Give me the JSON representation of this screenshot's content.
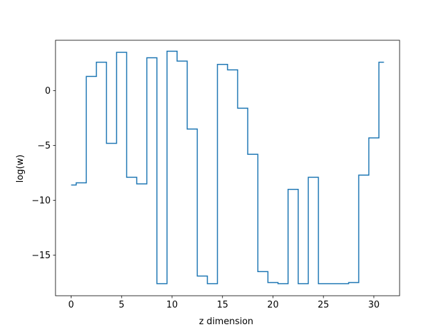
{
  "chart_data": {
    "type": "line",
    "drawstyle": "steps-mid",
    "xlabel": "z dimension",
    "ylabel": "log(w)",
    "xlim": [
      -1.55,
      32.55
    ],
    "ylim": [
      -18.7,
      4.6
    ],
    "x_ticks": [
      0,
      5,
      10,
      15,
      20,
      25,
      30
    ],
    "y_ticks": [
      0,
      -5,
      -10,
      -15
    ],
    "x_tick_labels": [
      "0",
      "5",
      "10",
      "15",
      "20",
      "25",
      "30"
    ],
    "y_tick_labels": [
      "0",
      "−5",
      "−10",
      "−15"
    ],
    "grid": false,
    "line_color": "#1f77b4",
    "x": [
      0,
      1,
      2,
      3,
      4,
      5,
      6,
      7,
      8,
      9,
      10,
      11,
      12,
      13,
      14,
      15,
      16,
      17,
      18,
      19,
      20,
      21,
      22,
      23,
      24,
      25,
      26,
      27,
      28,
      29,
      30,
      31
    ],
    "values": [
      -8.6,
      -8.4,
      1.3,
      2.6,
      -4.8,
      3.5,
      -7.9,
      -8.5,
      3.0,
      -17.6,
      3.6,
      2.7,
      -3.5,
      -16.9,
      -17.6,
      2.4,
      1.9,
      -1.6,
      -5.8,
      -16.5,
      -17.5,
      -17.6,
      -9.0,
      -17.6,
      -7.9,
      -17.6,
      -17.6,
      -17.6,
      -17.5,
      -7.7,
      -4.3,
      2.6
    ]
  }
}
